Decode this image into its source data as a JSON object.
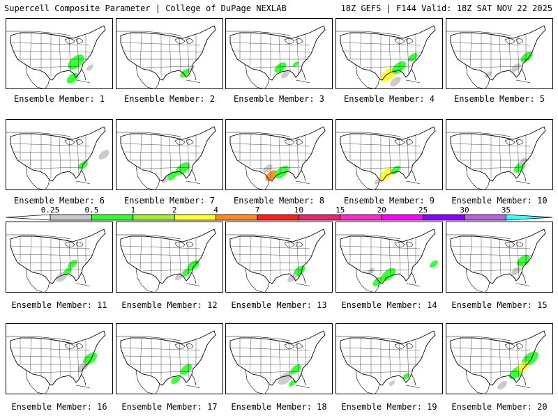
{
  "header": {
    "title_left": "Supercell Composite Parameter | College of DuPage NEXLAB",
    "title_right": "18Z GEFS | F144 Valid: 18Z SAT NOV 22 2025"
  },
  "legend": {
    "ticks": [
      "0.25",
      "0.5",
      "1",
      "2",
      "4",
      "7",
      "10",
      "15",
      "20",
      "25",
      "30",
      "35"
    ],
    "colors": [
      "#c8c8c8",
      "#32ff32",
      "#a0f032",
      "#ffff32",
      "#ff8c1e",
      "#ff1e1e",
      "#e6286e",
      "#ff28c8",
      "#ff00ff",
      "#8c00ff",
      "#b464dc",
      "#32ffff"
    ]
  },
  "members": [
    {
      "label": "Ensemble Member: 1",
      "blobs": [
        [
          100,
          62,
          14,
          "#32ff32"
        ],
        [
          95,
          85,
          10,
          "#32ff32"
        ],
        [
          120,
          70,
          6,
          "#c8c8c8"
        ]
      ]
    },
    {
      "label": "Ensemble Member: 2",
      "blobs": [
        [
          98,
          78,
          8,
          "#32ff32"
        ],
        [
          108,
          70,
          5,
          "#c8c8c8"
        ]
      ]
    },
    {
      "label": "Ensemble Member: 3",
      "blobs": [
        [
          78,
          70,
          10,
          "#32ff32"
        ],
        [
          85,
          80,
          7,
          "#c8c8c8"
        ],
        [
          100,
          65,
          5,
          "#32ff32"
        ]
      ]
    },
    {
      "label": "Ensemble Member: 4",
      "blobs": [
        [
          75,
          80,
          14,
          "#ffff32"
        ],
        [
          90,
          70,
          12,
          "#32ff32"
        ],
        [
          110,
          55,
          8,
          "#32ff32"
        ],
        [
          85,
          90,
          9,
          "#c8c8c8"
        ]
      ]
    },
    {
      "label": "Ensemble Member: 5",
      "blobs": [
        [
          115,
          55,
          10,
          "#32ff32"
        ],
        [
          100,
          70,
          8,
          "#c8c8c8"
        ],
        [
          60,
          80,
          6,
          "#c8c8c8"
        ]
      ]
    },
    {
      "label": "Ensemble Member: 6",
      "blobs": [
        [
          110,
          65,
          8,
          "#32ff32"
        ],
        [
          140,
          50,
          9,
          "#c8c8c8"
        ]
      ]
    },
    {
      "label": "Ensemble Member: 7",
      "blobs": [
        [
          95,
          70,
          12,
          "#32ff32"
        ],
        [
          80,
          80,
          9,
          "#32ff32"
        ],
        [
          70,
          86,
          6,
          "#c8c8c8"
        ]
      ]
    },
    {
      "label": "Ensemble Member: 8",
      "blobs": [
        [
          65,
          80,
          10,
          "#ff8c1e"
        ],
        [
          80,
          75,
          12,
          "#32ff32"
        ],
        [
          60,
          70,
          8,
          "#c8c8c8"
        ]
      ]
    },
    {
      "label": "Ensemble Member: 9",
      "blobs": [
        [
          72,
          78,
          12,
          "#ffff32"
        ],
        [
          85,
          72,
          8,
          "#32ff32"
        ],
        [
          60,
          88,
          6,
          "#c8c8c8"
        ]
      ]
    },
    {
      "label": "Ensemble Member: 10",
      "blobs": [
        [
          105,
          68,
          10,
          "#32ff32"
        ],
        [
          110,
          60,
          7,
          "#c8c8c8"
        ]
      ]
    },
    {
      "label": "Ensemble Member: 11",
      "blobs": [
        [
          95,
          60,
          8,
          "#32ff32"
        ],
        [
          80,
          78,
          10,
          "#c8c8c8"
        ],
        [
          88,
          70,
          7,
          "#32ff32"
        ]
      ]
    },
    {
      "label": "Ensemble Member: 12",
      "blobs": [
        [
          110,
          62,
          10,
          "#32ff32"
        ],
        [
          100,
          72,
          8,
          "#32ff32"
        ],
        [
          90,
          78,
          7,
          "#c8c8c8"
        ]
      ]
    },
    {
      "label": "Ensemble Member: 13",
      "blobs": [
        [
          105,
          70,
          10,
          "#32ff32"
        ],
        [
          95,
          80,
          8,
          "#c8c8c8"
        ]
      ]
    },
    {
      "label": "Ensemble Member: 14",
      "blobs": [
        [
          75,
          75,
          12,
          "#32ff32"
        ],
        [
          60,
          85,
          9,
          "#32ff32"
        ],
        [
          140,
          60,
          7,
          "#32ff32"
        ],
        [
          50,
          70,
          6,
          "#c8c8c8"
        ]
      ]
    },
    {
      "label": "Ensemble Member: 15",
      "blobs": [
        [
          110,
          55,
          11,
          "#32ff32"
        ],
        [
          100,
          70,
          8,
          "#c8c8c8"
        ]
      ]
    },
    {
      "label": "Ensemble Member: 16",
      "blobs": [
        [
          120,
          50,
          12,
          "#32ff32"
        ],
        [
          110,
          62,
          9,
          "#c8c8c8"
        ]
      ]
    },
    {
      "label": "Ensemble Member: 17",
      "blobs": [
        [
          100,
          65,
          10,
          "#32ff32"
        ],
        [
          85,
          80,
          8,
          "#32ff32"
        ]
      ]
    },
    {
      "label": "Ensemble Member: 18",
      "blobs": [
        [
          85,
          78,
          12,
          "#c8c8c8"
        ],
        [
          100,
          65,
          9,
          "#32ff32"
        ],
        [
          95,
          85,
          6,
          "#32ff32"
        ]
      ]
    },
    {
      "label": "Ensemble Member: 19",
      "blobs": [
        [
          100,
          75,
          6,
          "#32ff32"
        ],
        [
          80,
          85,
          5,
          "#c8c8c8"
        ]
      ]
    },
    {
      "label": "Ensemble Member: 20",
      "blobs": [
        [
          120,
          50,
          14,
          "#32ff32"
        ],
        [
          100,
          70,
          12,
          "#32ff32"
        ],
        [
          110,
          62,
          10,
          "#ffff32"
        ],
        [
          80,
          88,
          8,
          "#c8c8c8"
        ]
      ]
    }
  ]
}
